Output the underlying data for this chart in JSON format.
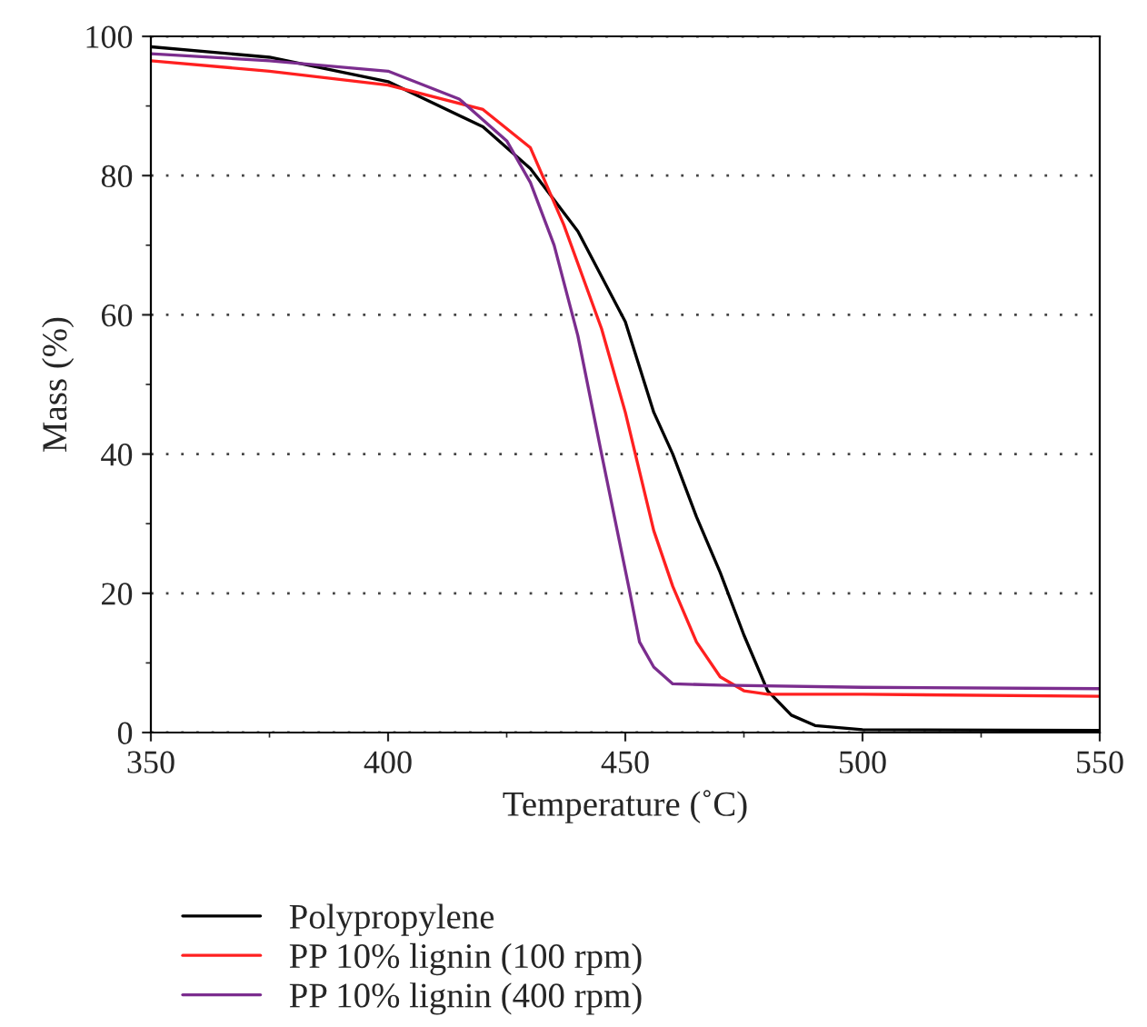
{
  "chart_data": {
    "type": "line",
    "xlabel": "Temperature (˚C)",
    "ylabel": "Mass (%)",
    "xlim": [
      350,
      550
    ],
    "xticks": [
      350,
      400,
      450,
      500,
      550
    ],
    "ylim": [
      0,
      100
    ],
    "yticks": [
      0,
      20,
      40,
      60,
      80,
      100
    ],
    "grid": "y",
    "legend": "bottom",
    "line_style": "solid",
    "marker": "none",
    "series": [
      {
        "name": "Polypropylene",
        "color": "#000000",
        "x": [
          350,
          375,
          400,
          420,
          430,
          440,
          450,
          456,
          460,
          465,
          470,
          475,
          480,
          485,
          490,
          500,
          550
        ],
        "values": [
          98.5,
          97,
          93.5,
          87,
          81,
          72,
          59,
          46,
          40,
          31,
          23,
          14,
          6,
          2.5,
          1,
          0.4,
          0.3
        ]
      },
      {
        "name": "PP 10% lignin (100 rpm)",
        "color": "#ff2020",
        "x": [
          350,
          375,
          400,
          420,
          430,
          437,
          445,
          450,
          456,
          460,
          465,
          470,
          475,
          480,
          500,
          550
        ],
        "values": [
          96.5,
          95,
          93,
          89.5,
          84,
          73,
          58,
          46,
          29,
          21,
          13,
          8,
          6,
          5.5,
          5.5,
          5.2
        ]
      },
      {
        "name": "PP 10% lignin (400 rpm)",
        "color": "#7b2d8e",
        "x": [
          350,
          375,
          400,
          415,
          425,
          430,
          435,
          440,
          445,
          451,
          453,
          456,
          460,
          470,
          500,
          550
        ],
        "values": [
          97.5,
          96.5,
          95,
          91,
          85,
          79,
          70,
          57,
          40,
          20,
          13,
          9.4,
          7,
          6.8,
          6.5,
          6.3
        ]
      }
    ]
  }
}
